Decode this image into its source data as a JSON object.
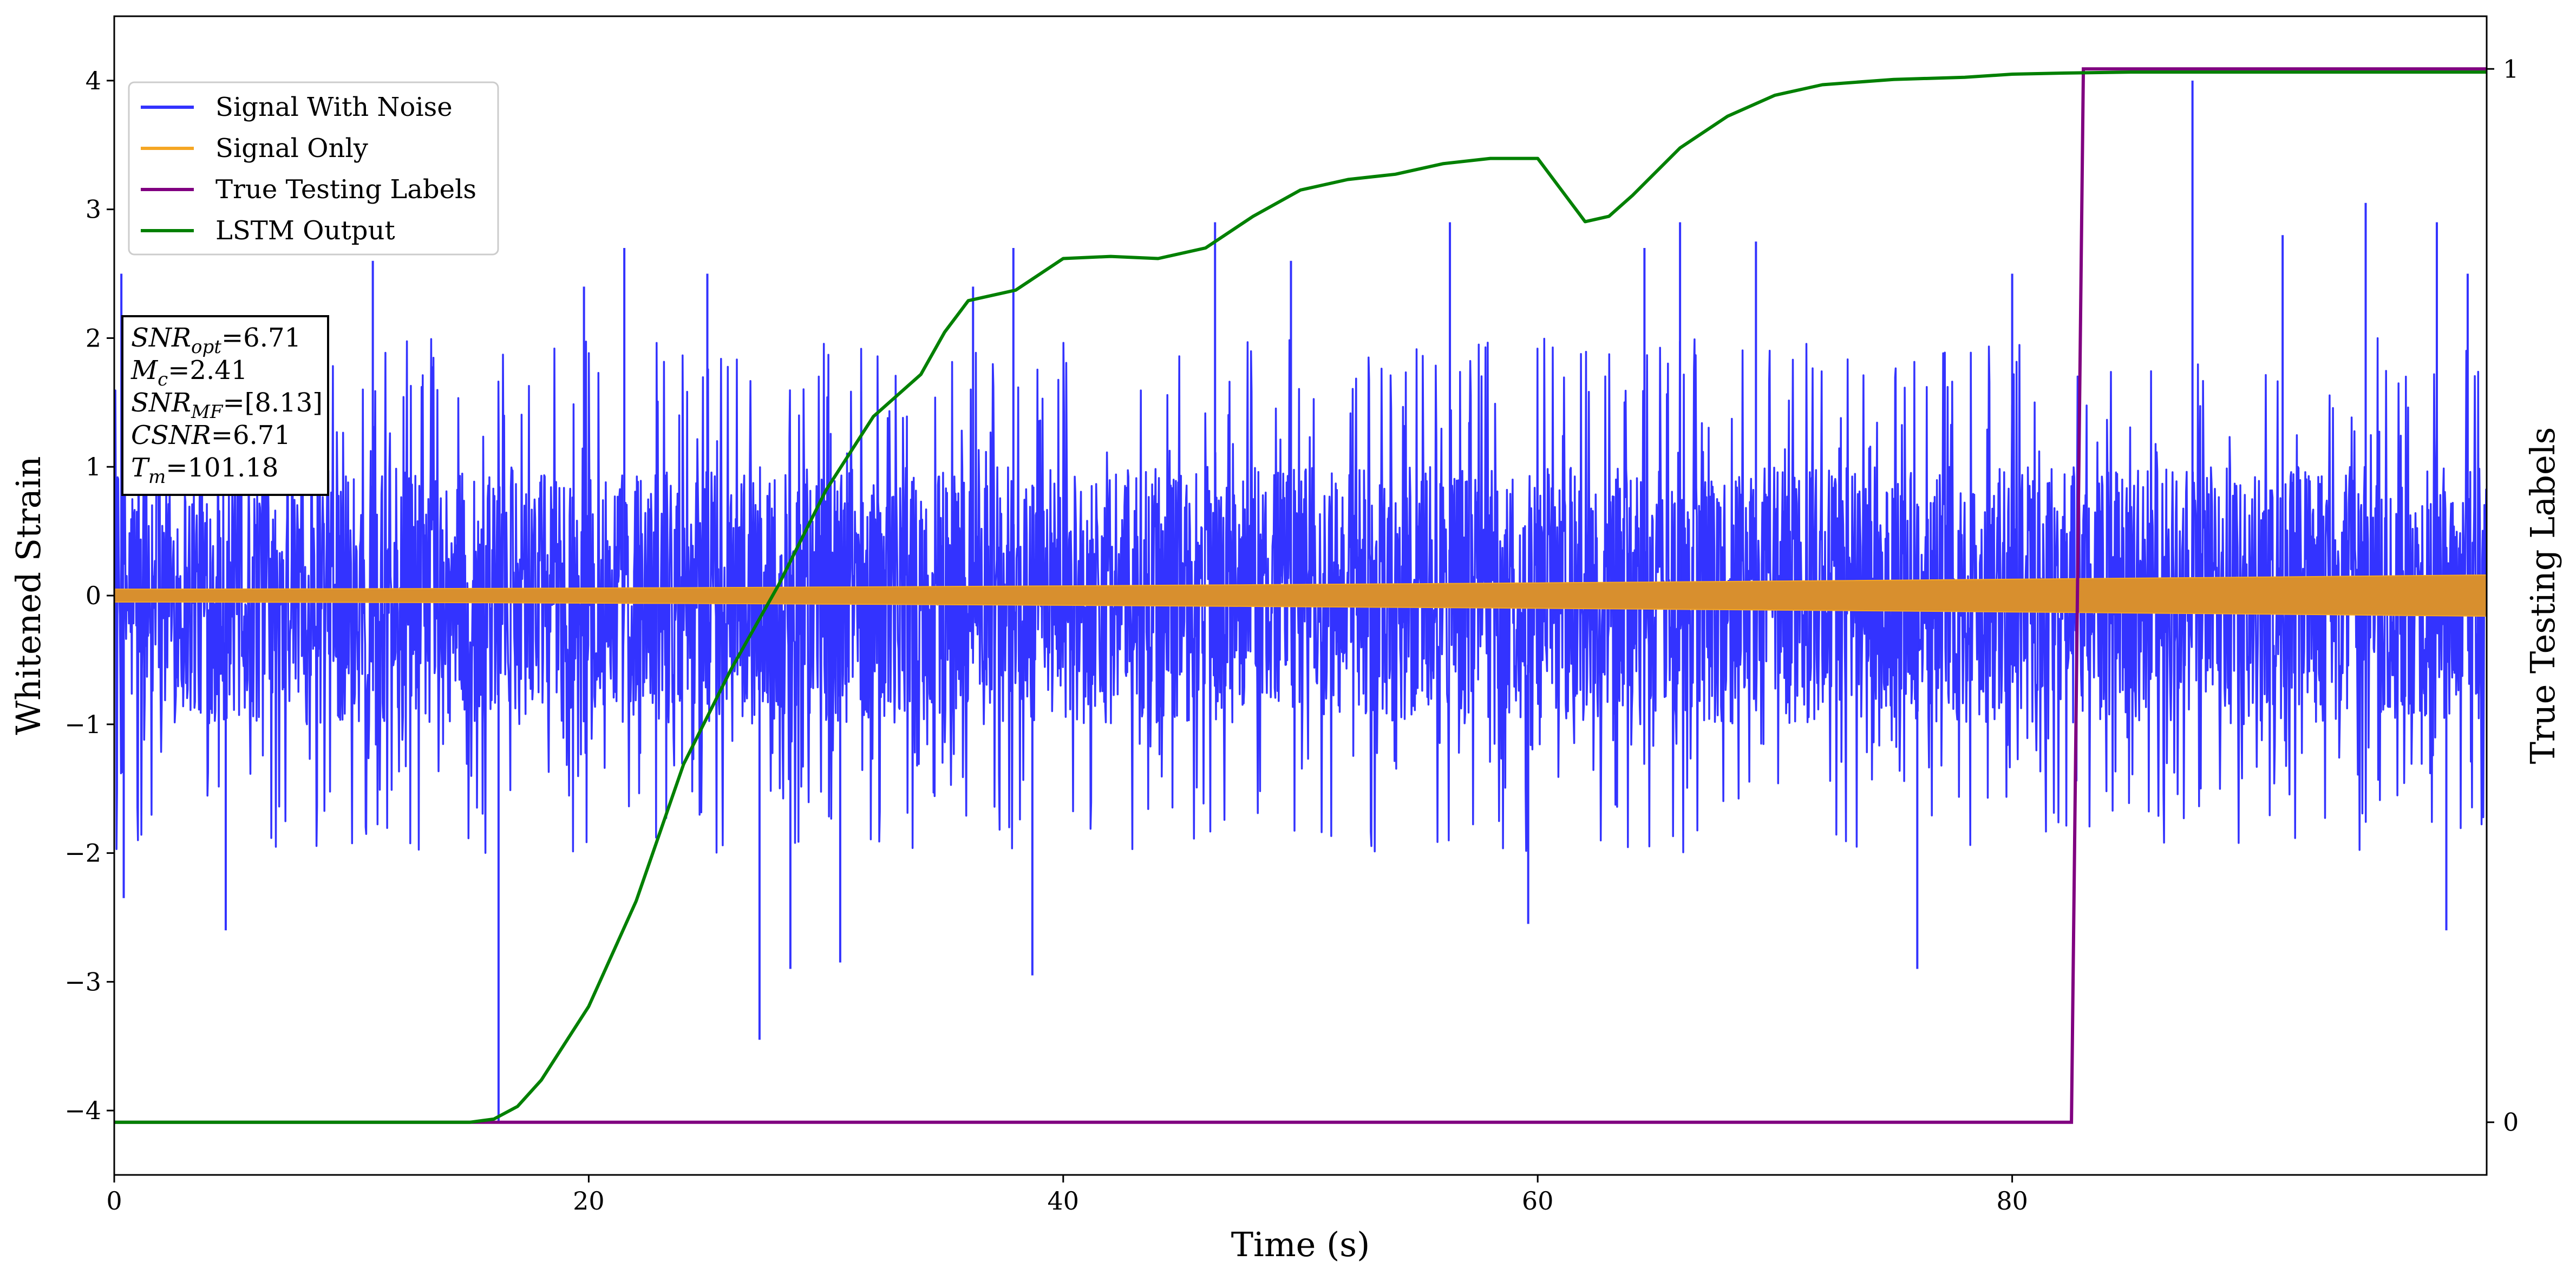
{
  "chart_data": {
    "type": "line",
    "title": "",
    "xlabel": "Time (s)",
    "ylabel": "Whitened Strain",
    "y2label": "True Testing Labels",
    "xlim": [
      0,
      100
    ],
    "ylim": [
      -4.5,
      4.5
    ],
    "y2lim": [
      -0.05,
      1.05
    ],
    "xticks": [
      0,
      20,
      40,
      60,
      80
    ],
    "yticks": [
      -4,
      -3,
      -2,
      -1,
      0,
      1,
      2,
      3,
      4
    ],
    "y2ticks": [
      0,
      1
    ],
    "grid": false,
    "legend_position": "top-left",
    "series": [
      {
        "name": "Signal With Noise",
        "axis": "left",
        "color": "#3333ff",
        "style": "noise",
        "envelope_upper": 1.0,
        "envelope_lower": -1.0,
        "spikes": [
          {
            "x": 0.3,
            "y": 2.5
          },
          {
            "x": 0.4,
            "y": -2.35
          },
          {
            "x": 3.7,
            "y": 2.1
          },
          {
            "x": 4.7,
            "y": -2.6
          },
          {
            "x": 10.9,
            "y": 2.6
          },
          {
            "x": 16.2,
            "y": -4.1
          },
          {
            "x": 19.8,
            "y": 2.4
          },
          {
            "x": 21.5,
            "y": 2.7
          },
          {
            "x": 25.0,
            "y": 2.5
          },
          {
            "x": 27.2,
            "y": -3.45
          },
          {
            "x": 28.5,
            "y": -2.9
          },
          {
            "x": 30.6,
            "y": -2.85
          },
          {
            "x": 36.2,
            "y": 2.4
          },
          {
            "x": 37.9,
            "y": 2.7
          },
          {
            "x": 38.7,
            "y": -2.95
          },
          {
            "x": 46.4,
            "y": 2.9
          },
          {
            "x": 49.6,
            "y": 2.6
          },
          {
            "x": 56.3,
            "y": 2.9
          },
          {
            "x": 59.6,
            "y": -2.55
          },
          {
            "x": 64.5,
            "y": 2.7
          },
          {
            "x": 66.0,
            "y": 2.9
          },
          {
            "x": 69.2,
            "y": 2.75
          },
          {
            "x": 76.0,
            "y": -2.9
          },
          {
            "x": 80.0,
            "y": 2.5
          },
          {
            "x": 87.6,
            "y": 4.0
          },
          {
            "x": 91.4,
            "y": 2.8
          },
          {
            "x": 94.9,
            "y": 3.05
          },
          {
            "x": 97.9,
            "y": 2.9
          },
          {
            "x": 99.2,
            "y": 2.5
          },
          {
            "x": 98.3,
            "y": -2.6
          }
        ]
      },
      {
        "name": "Signal Only",
        "axis": "left",
        "color": "#f5a623",
        "style": "chirp",
        "amplitude_start": 0.05,
        "amplitude_end": 0.16
      },
      {
        "name": "True Testing Labels",
        "axis": "right",
        "color": "#800080",
        "style": "step",
        "x": [
          0,
          82.5,
          83.0,
          100
        ],
        "y": [
          0,
          0,
          1,
          1
        ]
      },
      {
        "name": "LSTM Output",
        "axis": "right",
        "color": "#008000",
        "style": "line",
        "x": [
          0,
          15,
          16,
          17,
          18,
          20,
          22,
          24,
          26,
          28,
          30,
          32,
          34,
          35,
          36,
          38,
          40,
          42,
          44,
          46,
          48,
          50,
          52,
          54,
          56,
          58,
          60,
          61,
          62,
          63,
          64,
          66,
          68,
          70,
          72,
          75,
          78,
          80,
          82,
          85,
          88,
          90,
          95,
          100
        ],
        "y": [
          0.0,
          0.0,
          0.003,
          0.015,
          0.04,
          0.11,
          0.21,
          0.34,
          0.43,
          0.51,
          0.6,
          0.67,
          0.71,
          0.75,
          0.78,
          0.79,
          0.82,
          0.822,
          0.82,
          0.83,
          0.86,
          0.885,
          0.895,
          0.9,
          0.91,
          0.915,
          0.915,
          0.885,
          0.855,
          0.86,
          0.88,
          0.925,
          0.955,
          0.975,
          0.985,
          0.99,
          0.992,
          0.995,
          0.996,
          0.997,
          0.997,
          0.997,
          0.997,
          0.997
        ]
      }
    ],
    "annotation": {
      "lines": [
        {
          "sym": "SNR",
          "sub": "opt",
          "rest": "=6.71"
        },
        {
          "sym": "M",
          "sub": "c",
          "rest": "=2.41"
        },
        {
          "sym": "SNR",
          "sub": "MF",
          "rest": "=[8.13]"
        },
        {
          "sym": "CSNR",
          "sub": "",
          "rest": "=6.71"
        },
        {
          "sym": "T",
          "sub": "m",
          "rest": "=101.18"
        }
      ]
    }
  }
}
